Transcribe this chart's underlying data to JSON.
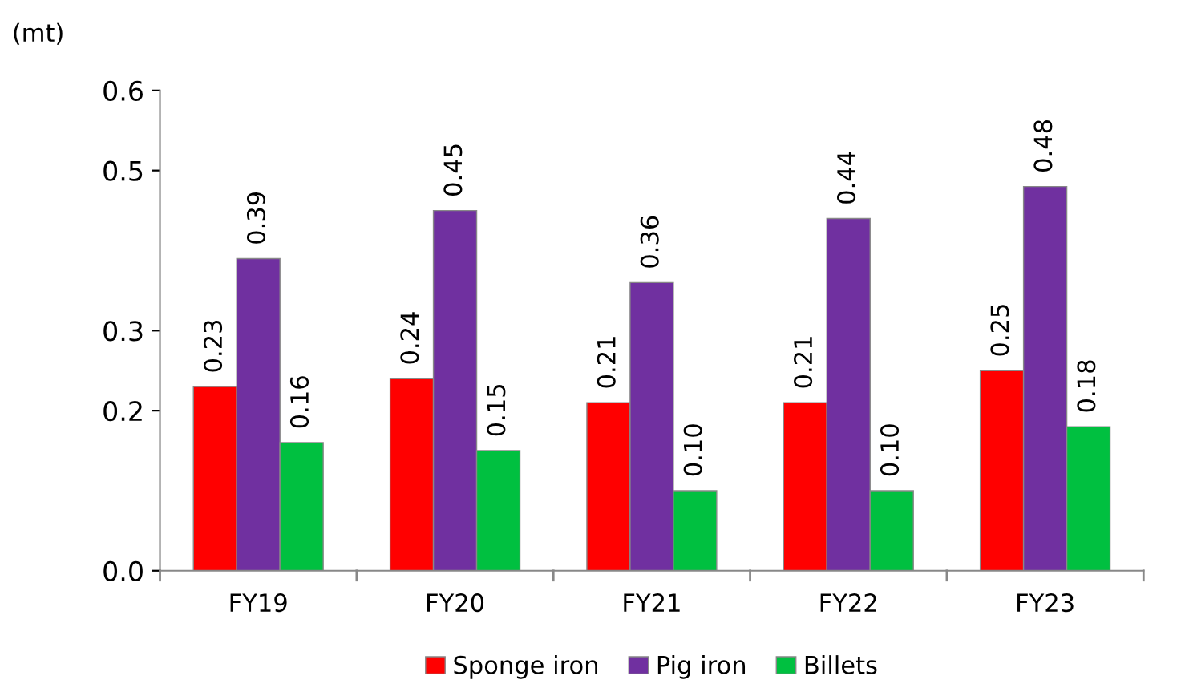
{
  "chart_data": {
    "type": "bar",
    "ylabel": "(mt)",
    "categories": [
      "FY19",
      "FY20",
      "FY21",
      "FY22",
      "FY23"
    ],
    "series": [
      {
        "name": "Sponge iron",
        "color": "#ff0000",
        "values": [
          0.23,
          0.24,
          0.21,
          0.21,
          0.25
        ],
        "value_labels": [
          "0.23",
          "0.24",
          "0.21",
          "0.21",
          "0.25"
        ]
      },
      {
        "name": "Pig iron",
        "color": "#7030a0",
        "values": [
          0.39,
          0.45,
          0.36,
          0.44,
          0.48
        ],
        "value_labels": [
          "0.39",
          "0.45",
          "0.36",
          "0.44",
          "0.48"
        ]
      },
      {
        "name": "Billets",
        "color": "#00c040",
        "values": [
          0.16,
          0.15,
          0.1,
          0.1,
          0.18
        ],
        "value_labels": [
          "0.16",
          "0.15",
          "0.10",
          "0.10",
          "0.18"
        ]
      }
    ],
    "ylim": [
      0,
      0.6
    ],
    "yticks": [
      {
        "value": 0,
        "label": "0.0"
      },
      0.2,
      0.3,
      0.5,
      0.6
    ],
    "grid": false,
    "legend": "bottom"
  }
}
